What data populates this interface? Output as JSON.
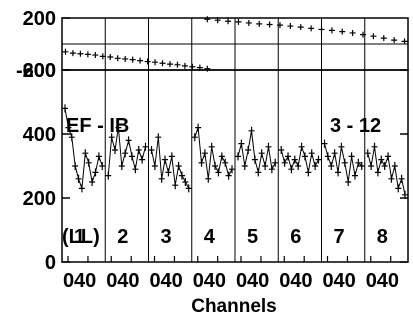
{
  "chart_data": [
    {
      "type": "scatter",
      "panel": "phase",
      "ylim": [
        -200,
        200
      ],
      "yticks": [
        {
          "v": 200,
          "label": "200"
        },
        {
          "v": -200,
          "label": "-200"
        }
      ],
      "series": [
        {
          "values": [
            -60,
            -70,
            -75,
            -80,
            -85,
            -95,
            -100,
            -110,
            -115,
            -120,
            -128,
            -135,
            -140,
            -148,
            -155,
            -160,
            -168,
            -175,
            -182,
            -190
          ]
        },
        {
          "values": [
            190,
            183,
            175,
            170,
            162,
            155,
            150,
            145,
            138,
            130,
            120,
            112,
            105,
            95,
            85,
            72,
            60,
            45,
            30,
            20
          ]
        }
      ]
    },
    {
      "type": "line",
      "panel": "amplitude",
      "ylim": [
        0,
        600
      ],
      "yticks": [
        {
          "v": 600,
          "label": "600"
        },
        {
          "v": 400,
          "label": "400"
        },
        {
          "v": 200,
          "label": "200"
        },
        {
          "v": 0,
          "label": "0"
        }
      ],
      "xlabel": "Channels",
      "title_left": "EF - IB",
      "title_right": "3 - 12",
      "pol_label": "(LL)",
      "spectral_windows": [
        {
          "label": "1",
          "tick0": "0",
          "tick40": "40",
          "values": [
            480,
            420,
            390,
            300,
            260,
            230,
            340,
            310,
            250,
            280,
            330,
            300
          ]
        },
        {
          "label": "2",
          "tick0": "0",
          "tick40": "40",
          "values": [
            270,
            390,
            350,
            420,
            300,
            340,
            380,
            330,
            290,
            350,
            320,
            360
          ]
        },
        {
          "label": "3",
          "tick0": "0",
          "tick40": "40",
          "values": [
            350,
            300,
            390,
            260,
            320,
            280,
            330,
            240,
            300,
            270,
            250,
            230
          ]
        },
        {
          "label": "4",
          "tick0": "0",
          "tick40": "40",
          "values": [
            390,
            420,
            310,
            340,
            260,
            360,
            300,
            280,
            330,
            310,
            270,
            290
          ]
        },
        {
          "label": "5",
          "tick0": "0",
          "tick40": "40",
          "values": [
            330,
            370,
            300,
            350,
            410,
            320,
            280,
            340,
            300,
            360,
            290,
            310
          ]
        },
        {
          "label": "6",
          "tick0": "0",
          "tick40": "40",
          "values": [
            350,
            310,
            330,
            290,
            320,
            300,
            360,
            330,
            280,
            340,
            300,
            320
          ]
        },
        {
          "label": "7",
          "tick0": "0",
          "tick40": "40",
          "values": [
            370,
            330,
            300,
            340,
            280,
            360,
            310,
            250,
            330,
            270,
            310,
            300
          ]
        },
        {
          "label": "8",
          "tick0": "0",
          "tick40": "40",
          "values": [
            340,
            300,
            360,
            280,
            320,
            300,
            330,
            260,
            300,
            230,
            260,
            210
          ]
        }
      ]
    }
  ]
}
